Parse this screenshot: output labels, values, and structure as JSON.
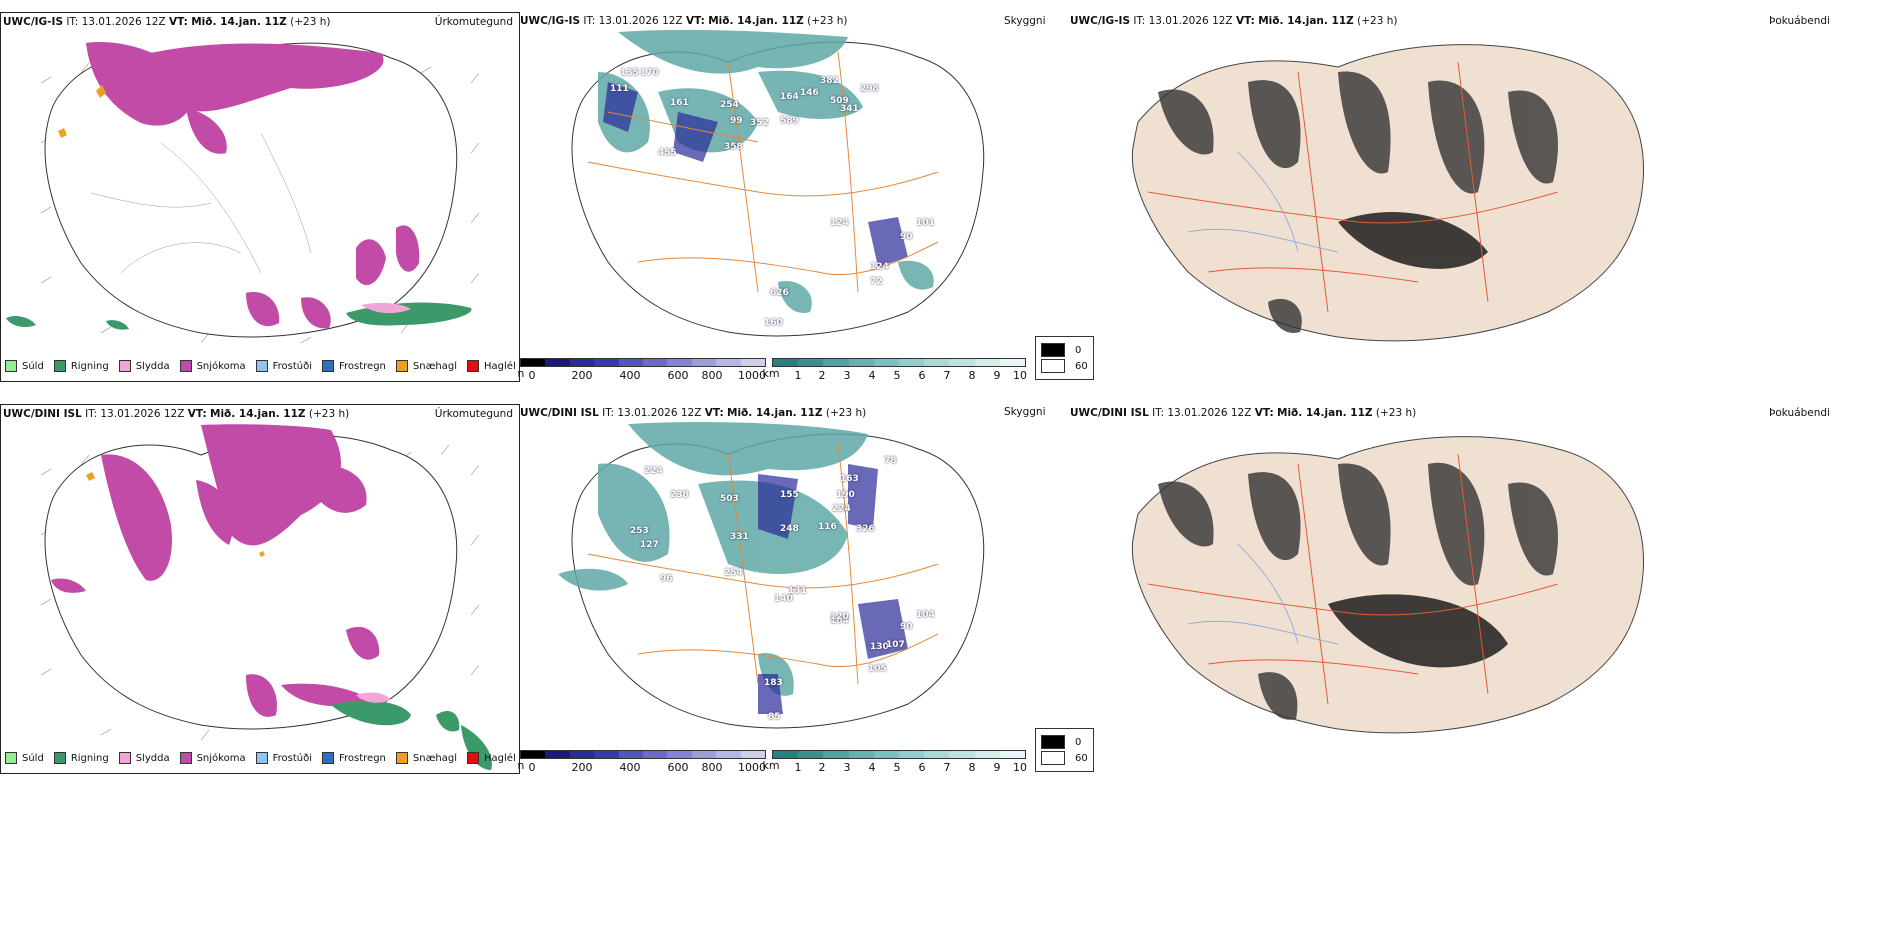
{
  "panels": [
    {
      "model": "UWC/IG-IS",
      "run_label": "IT:",
      "run_time": "13.01.2026 12Z",
      "valid_label": "VT:",
      "valid_time": "Mið. 14.jan. 11Z",
      "lead": "(+23 h)",
      "kind": "Úrkomutegund"
    },
    {
      "model": "UWC/IG-IS",
      "run_label": "IT:",
      "run_time": "13.01.2026 12Z",
      "valid_label": "VT:",
      "valid_time": "Mið. 14.jan. 11Z",
      "lead": "(+23 h)",
      "kind": "Skyggni"
    },
    {
      "model": "UWC/IG-IS",
      "run_label": "IT:",
      "run_time": "13.01.2026 12Z",
      "valid_label": "VT:",
      "valid_time": "Mið. 14.jan. 11Z",
      "lead": "(+23 h)",
      "kind": "Þokuábendi"
    },
    {
      "model": "UWC/DINI ISL",
      "run_label": "IT:",
      "run_time": "13.01.2026 12Z",
      "valid_label": "VT:",
      "valid_time": "Mið. 14.jan. 11Z",
      "lead": "(+23 h)",
      "kind": "Úrkomutegund"
    },
    {
      "model": "UWC/DINI ISL",
      "run_label": "IT:",
      "run_time": "13.01.2026 12Z",
      "valid_label": "VT:",
      "valid_time": "Mið. 14.jan. 11Z",
      "lead": "(+23 h)",
      "kind": "Skyggni"
    },
    {
      "model": "UWC/DINI ISL",
      "run_label": "IT:",
      "run_time": "13.01.2026 12Z",
      "valid_label": "VT:",
      "valid_time": "Mið. 14.jan. 11Z",
      "lead": "(+23 h)",
      "kind": "Þokuábendi"
    }
  ],
  "precip_legend": [
    {
      "label": "Súld",
      "color": "#90ee90"
    },
    {
      "label": "Rigning",
      "color": "#3c9a6a"
    },
    {
      "label": "Slydda",
      "color": "#f2a6d8"
    },
    {
      "label": "Snjókoma",
      "color": "#c14ba6"
    },
    {
      "label": "Frostúði",
      "color": "#90c4f0"
    },
    {
      "label": "Frostregn",
      "color": "#2f6fc4"
    },
    {
      "label": "Snæhagl",
      "color": "#f0a020"
    },
    {
      "label": "Haglél",
      "color": "#e01010"
    }
  ],
  "ceiling_scale": {
    "unit": "m",
    "ticks": [
      "0",
      "200",
      "400",
      "600",
      "800",
      "1000"
    ],
    "colors": [
      "#000000",
      "#1a1a7a",
      "#2a2a9a",
      "#3a3ab0",
      "#5555c0",
      "#6b6bc8",
      "#8484d0",
      "#9d9dd8",
      "#b6b6e0",
      "#cfcfe8"
    ]
  },
  "vis_scale": {
    "unit": "km",
    "ticks": [
      "1",
      "2",
      "3",
      "4",
      "5",
      "6",
      "7",
      "8",
      "9",
      "10"
    ],
    "colors": [
      "#2a7f7f",
      "#3f8f8f",
      "#55a0a0",
      "#6ab0b0",
      "#80bfbf",
      "#95cccc",
      "#abd8d8",
      "#c0e2e2",
      "#d5ecec",
      "#eaf6f6"
    ]
  },
  "fog_legend": [
    {
      "value": "0",
      "color": "#000000"
    },
    {
      "value": "60",
      "color": "#ffffff"
    }
  ],
  "visibility_labels_top": [
    "135",
    "170",
    "161",
    "254",
    "99",
    "352",
    "589",
    "164",
    "146",
    "382",
    "298",
    "509",
    "341",
    "455",
    "358",
    "124",
    "90",
    "101",
    "124",
    "72",
    "626",
    "160",
    "111"
  ],
  "visibility_labels_bottom": [
    "224",
    "238",
    "253",
    "127",
    "96",
    "503",
    "331",
    "155",
    "116",
    "163",
    "190",
    "224",
    "326",
    "78",
    "248",
    "254",
    "140",
    "131",
    "164",
    "90",
    "130",
    "107",
    "105",
    "183",
    "85",
    "120",
    "104"
  ]
}
